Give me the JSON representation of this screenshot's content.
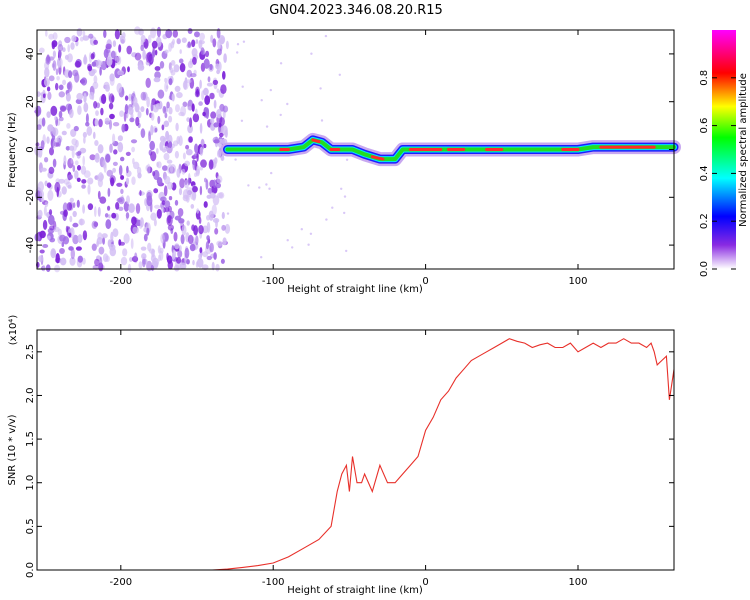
{
  "figure": {
    "title": "GN04.2023.346.08.20.R15"
  },
  "chart_data": [
    {
      "type": "heatmap",
      "title": "GN04.2023.346.08.20.R15",
      "xlabel": "Height of straight line (km)",
      "ylabel": "Frequency (Hz)",
      "xlim": [
        -255,
        163
      ],
      "ylim": [
        -50,
        50
      ],
      "xticks": [
        -200,
        -100,
        0,
        100
      ],
      "xtick_labels": [
        "-200",
        "-100",
        "0",
        "100"
      ],
      "yticks": [
        -40,
        -20,
        0,
        20,
        40
      ],
      "ytick_labels": [
        "-40",
        "-20",
        "0",
        "20",
        "40"
      ],
      "colorbar": {
        "label": "Normalized spectral amplitude",
        "range": [
          0,
          1
        ],
        "ticks": [
          0.0,
          0.2,
          0.4,
          0.6,
          0.8
        ],
        "tick_labels": [
          "0.0",
          "0.2",
          "0.4",
          "0.6",
          "0.8"
        ],
        "colormap": [
          "#ffffff",
          "#8a2be2",
          "#0000ff",
          "#00ffff",
          "#00ff00",
          "#ffff00",
          "#ff0000",
          "#ff00ff"
        ]
      },
      "noise_region_x": [
        -255,
        -130
      ],
      "signal_ridge": {
        "x": [
          -130,
          -110,
          -90,
          -80,
          -74,
          -68,
          -62,
          -55,
          -48,
          -40,
          -30,
          -20,
          -15,
          -10,
          0,
          20,
          50,
          80,
          100,
          110,
          130,
          163
        ],
        "freq_hz": [
          0,
          0,
          0,
          1,
          4,
          3,
          0,
          0,
          0,
          -2,
          -4,
          -4,
          0,
          0,
          0,
          0,
          0,
          0,
          0,
          1,
          1,
          1
        ]
      }
    },
    {
      "type": "line",
      "xlabel": "Height of straight line (km)",
      "ylabel": "SNR (10 * v/v)",
      "y_multiplier": "(x10⁴)",
      "xlim": [
        -255,
        163
      ],
      "ylim": [
        0,
        2.75
      ],
      "xticks": [
        -200,
        -100,
        0,
        100
      ],
      "xtick_labels": [
        "-200",
        "-100",
        "0",
        "100"
      ],
      "yticks": [
        0.0,
        0.5,
        1.0,
        1.5,
        2.0,
        2.5
      ],
      "ytick_labels": [
        "0.0",
        "0.5",
        "1.0",
        "1.5",
        "2.0",
        "2.5"
      ],
      "series": [
        {
          "color": "#e8302a",
          "x": [
            -255,
            -240,
            -220,
            -200,
            -180,
            -160,
            -140,
            -130,
            -120,
            -110,
            -100,
            -90,
            -80,
            -70,
            -62,
            -58,
            -55,
            -52,
            -50,
            -48,
            -45,
            -42,
            -40,
            -35,
            -30,
            -25,
            -20,
            -15,
            -10,
            -5,
            0,
            5,
            10,
            15,
            20,
            25,
            30,
            35,
            40,
            45,
            50,
            55,
            60,
            65,
            70,
            75,
            80,
            85,
            90,
            95,
            100,
            105,
            110,
            115,
            120,
            125,
            130,
            135,
            140,
            145,
            148,
            150,
            152,
            155,
            158,
            160,
            163
          ],
          "y": [
            0.0,
            0.0,
            0.0,
            0.0,
            0.0,
            0.0,
            0.0,
            0.01,
            0.03,
            0.05,
            0.08,
            0.15,
            0.25,
            0.35,
            0.5,
            0.9,
            1.1,
            1.2,
            0.9,
            1.3,
            1.0,
            1.0,
            1.1,
            0.9,
            1.2,
            1.0,
            1.0,
            1.1,
            1.2,
            1.3,
            1.6,
            1.75,
            1.95,
            2.05,
            2.2,
            2.3,
            2.4,
            2.45,
            2.5,
            2.55,
            2.6,
            2.65,
            2.62,
            2.6,
            2.55,
            2.58,
            2.6,
            2.55,
            2.55,
            2.6,
            2.5,
            2.55,
            2.6,
            2.55,
            2.6,
            2.6,
            2.65,
            2.6,
            2.6,
            2.55,
            2.6,
            2.5,
            2.35,
            2.4,
            2.45,
            1.95,
            2.3
          ]
        }
      ]
    }
  ]
}
